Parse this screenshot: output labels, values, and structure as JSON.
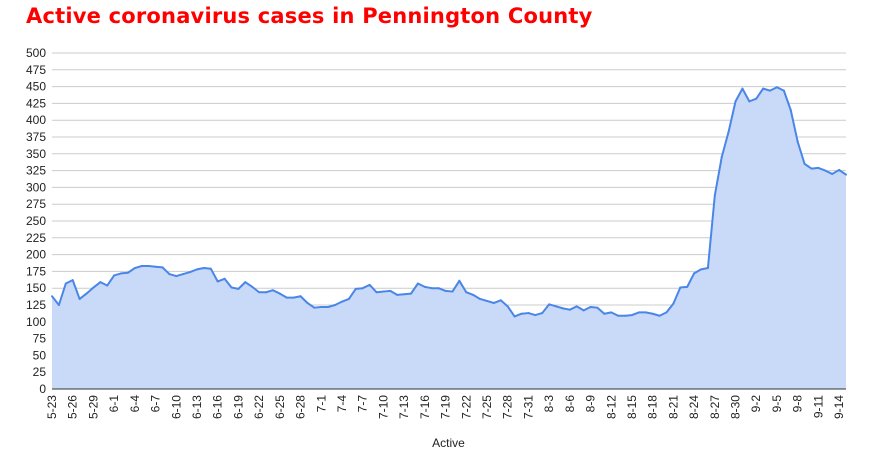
{
  "chart_data": {
    "type": "area",
    "title": "Active coronavirus cases in Pennington County",
    "xlabel": "Active",
    "ylabel": "",
    "ylim": [
      0,
      500
    ],
    "y_ticks": [
      0,
      25,
      50,
      75,
      100,
      125,
      150,
      175,
      200,
      225,
      250,
      275,
      300,
      325,
      350,
      375,
      400,
      425,
      450,
      475,
      500
    ],
    "x_tick_labels": [
      "5-23",
      "5-26",
      "5-29",
      "6-1",
      "6-4",
      "6-7",
      "6-10",
      "6-13",
      "6-16",
      "6-19",
      "6-22",
      "6-25",
      "6-28",
      "7-1",
      "7-4",
      "7-7",
      "7-10",
      "7-13",
      "7-16",
      "7-19",
      "7-22",
      "7-25",
      "7-28",
      "7-31",
      "8-3",
      "8-6",
      "8-9",
      "8-12",
      "8-15",
      "8-18",
      "8-21",
      "8-24",
      "8-27",
      "8-30",
      "9-2",
      "9-5",
      "9-8",
      "9-11",
      "9-14"
    ],
    "grid": true,
    "colors": {
      "title": "#ff0000",
      "line": "#4a86e8",
      "fill": "#c9daf8",
      "grid": "#cccccc",
      "axis": "#333333"
    },
    "series": [
      {
        "name": "Active",
        "values": [
          138,
          125,
          157,
          162,
          134,
          142,
          151,
          159,
          154,
          169,
          172,
          173,
          180,
          183,
          183,
          182,
          181,
          171,
          168,
          171,
          174,
          178,
          180,
          179,
          160,
          164,
          151,
          149,
          159,
          152,
          144,
          144,
          147,
          142,
          136,
          136,
          138,
          128,
          121,
          122,
          122,
          125,
          130,
          134,
          149,
          150,
          155,
          144,
          145,
          146,
          140,
          141,
          142,
          157,
          152,
          150,
          150,
          146,
          145,
          161,
          144,
          140,
          134,
          131,
          128,
          132,
          123,
          108,
          112,
          113,
          110,
          113,
          126,
          123,
          120,
          118,
          123,
          117,
          122,
          121,
          112,
          114,
          109,
          109,
          110,
          114,
          114,
          112,
          109,
          114,
          127,
          151,
          152,
          172,
          178,
          180,
          288,
          345,
          383,
          428,
          447,
          428,
          432,
          447,
          444,
          449,
          444,
          415,
          368,
          335,
          328,
          329,
          325,
          320,
          326,
          319
        ]
      }
    ]
  }
}
